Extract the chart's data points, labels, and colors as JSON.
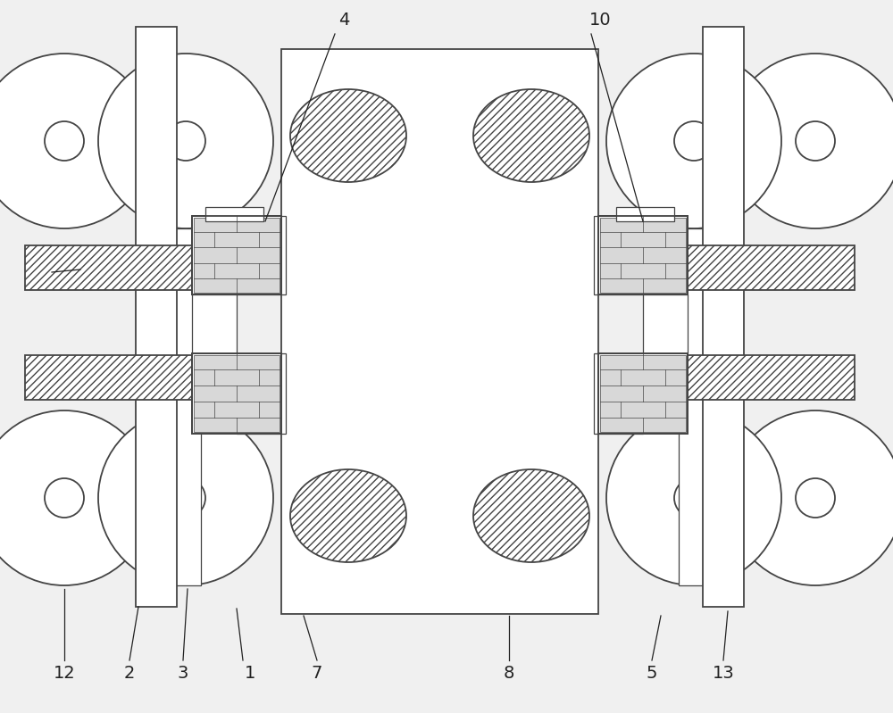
{
  "bg_color": "#f0f0f0",
  "line_color": "#444444",
  "fig_width": 10.0,
  "fig_height": 7.99,
  "dpi": 100
}
